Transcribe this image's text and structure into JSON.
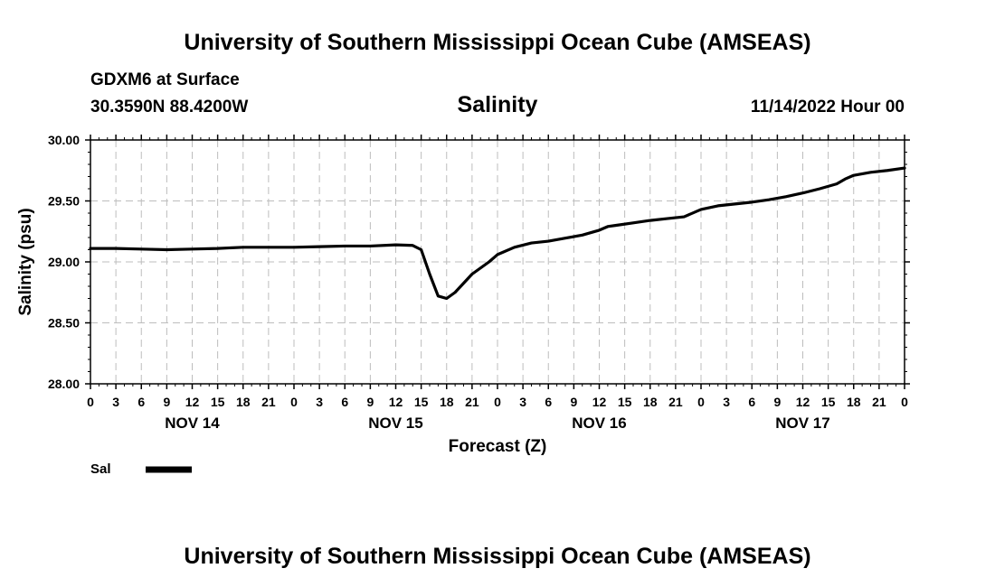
{
  "header": {
    "title_top": "University of Southern Mississippi Ocean Cube (AMSEAS)",
    "station": "GDXM6 at Surface",
    "location": "30.3590N  88.4200W",
    "datetime": "11/14/2022 Hour 00",
    "title_bottom": "University of Southern Mississippi Ocean Cube (AMSEAS)"
  },
  "legend": {
    "label": "Sal",
    "color": "#000000"
  },
  "chart_data": {
    "type": "line",
    "title": "Salinity",
    "xlabel": "Forecast (Z)",
    "ylabel": "Salinity (psu)",
    "ylim": [
      28.0,
      30.0
    ],
    "xlim": [
      0,
      96
    ],
    "grid": true,
    "y_ticks": [
      "28.00",
      "28.50",
      "29.00",
      "29.50",
      "30.00"
    ],
    "x_ticks": [
      "0",
      "3",
      "6",
      "9",
      "12",
      "15",
      "18",
      "21",
      "0",
      "3",
      "6",
      "9",
      "12",
      "15",
      "18",
      "21",
      "0",
      "3",
      "6",
      "9",
      "12",
      "15",
      "18",
      "21",
      "0",
      "3",
      "6",
      "9",
      "12",
      "15",
      "18",
      "21",
      "0"
    ],
    "day_labels": [
      {
        "label": "NOV 14",
        "hour": 12
      },
      {
        "label": "NOV 15",
        "hour": 36
      },
      {
        "label": "NOV 16",
        "hour": 60
      },
      {
        "label": "NOV 17",
        "hour": 84
      }
    ],
    "series": [
      {
        "name": "Sal",
        "color": "#000000",
        "x": [
          0,
          3,
          6,
          9,
          12,
          15,
          18,
          21,
          24,
          27,
          30,
          33,
          36,
          38,
          39,
          40,
          41,
          42,
          43,
          45,
          47,
          48,
          50,
          52,
          54,
          56,
          58,
          60,
          61,
          62,
          64,
          66,
          68,
          70,
          72,
          73,
          74,
          76,
          78,
          80,
          82,
          84,
          86,
          88,
          89,
          90,
          92,
          94,
          96
        ],
        "y": [
          29.11,
          29.11,
          29.105,
          29.1,
          29.105,
          29.11,
          29.12,
          29.12,
          29.12,
          29.125,
          29.13,
          29.13,
          29.14,
          29.135,
          29.1,
          28.9,
          28.72,
          28.7,
          28.75,
          28.9,
          29.0,
          29.06,
          29.12,
          29.155,
          29.17,
          29.195,
          29.22,
          29.26,
          29.29,
          29.3,
          29.32,
          29.34,
          29.355,
          29.37,
          29.43,
          29.445,
          29.46,
          29.475,
          29.49,
          29.51,
          29.535,
          29.565,
          29.6,
          29.64,
          29.68,
          29.71,
          29.735,
          29.75,
          29.77
        ]
      }
    ]
  }
}
